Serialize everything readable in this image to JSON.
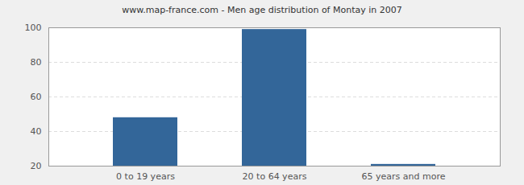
{
  "chart_data": {
    "type": "bar",
    "title": "www.map-france.com - Men age distribution of Montay in 2007",
    "categories": [
      "0 to 19 years",
      "20 to 64 years",
      "65 years and more"
    ],
    "values": [
      48,
      99,
      21
    ],
    "color": "#336699",
    "ylim": [
      20,
      100
    ],
    "yticks": [
      20,
      40,
      60,
      80,
      100
    ],
    "grid": true
  }
}
